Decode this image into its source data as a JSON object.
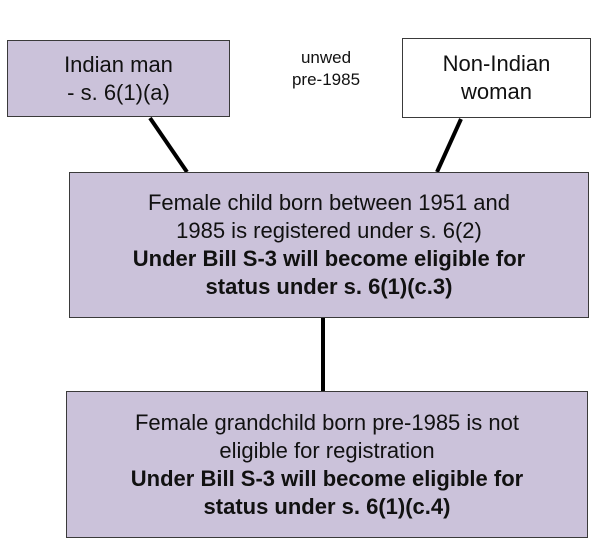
{
  "parents": {
    "father": {
      "line1": "Indian man",
      "line2": "- s. 6(1)(a)"
    },
    "union_label": {
      "line1": "unwed",
      "line2": "pre-1985"
    },
    "mother": {
      "line1": "Non-Indian",
      "line2": "woman"
    }
  },
  "child": {
    "line1": "Female child born between 1951 and",
    "line2": "1985 is registered under s. 6(2)",
    "bold_line1": "Under Bill S-3 will become eligible for",
    "bold_line2": "status under s. 6(1)(c.3)"
  },
  "grandchild": {
    "line1": "Female grandchild born pre-1985 is not",
    "line2": "eligible for registration",
    "bold_line1": "Under Bill S-3 will become eligible for",
    "bold_line2": "status under s. 6(1)(c.4)"
  },
  "colors": {
    "box_fill": "#cbc2da",
    "box_border": "#3a3a3a",
    "connector": "#000000"
  }
}
